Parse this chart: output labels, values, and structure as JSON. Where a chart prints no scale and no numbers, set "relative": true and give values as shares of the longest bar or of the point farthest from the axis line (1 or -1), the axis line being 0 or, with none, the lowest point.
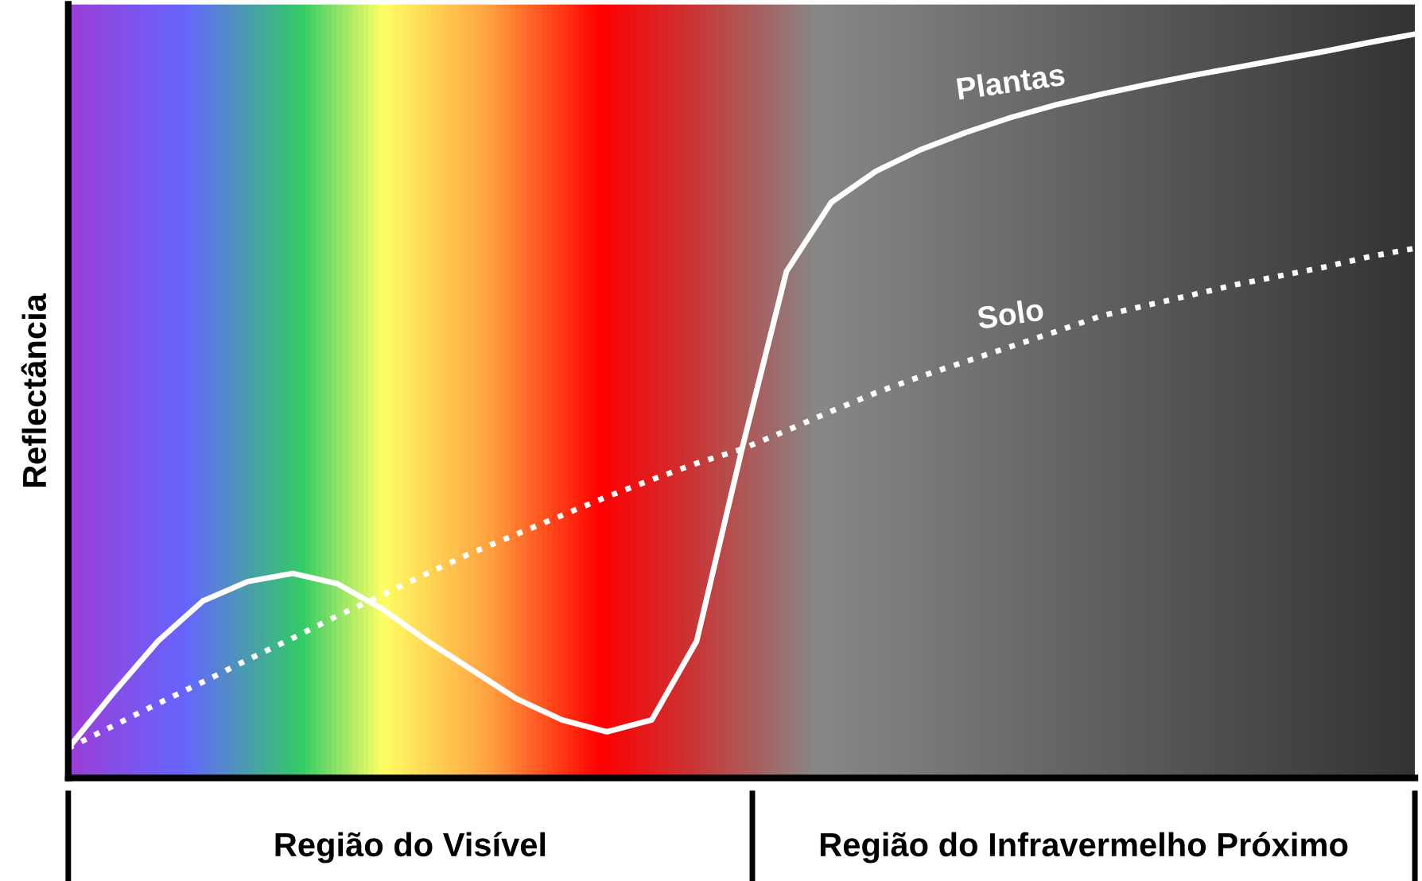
{
  "chart_data": {
    "type": "line",
    "relative": true,
    "ylabel": "Reflectância",
    "tick_labels": false,
    "categories": [
      null,
      null,
      null,
      null,
      null,
      null,
      null,
      null,
      null,
      null,
      null,
      null,
      null,
      null,
      null,
      null,
      null,
      null,
      null,
      null,
      null,
      null,
      null,
      null,
      null,
      null,
      null,
      null,
      null,
      null,
      null
    ],
    "series": [
      {
        "name": "Plantas",
        "color": "#ffffff",
        "line_style": "solid",
        "values": [
          0.04,
          0.114,
          0.184,
          0.238,
          0.264,
          0.275,
          0.261,
          0.227,
          0.184,
          0.145,
          0.106,
          0.078,
          0.062,
          0.078,
          0.184,
          0.44,
          0.681,
          0.774,
          0.816,
          0.845,
          0.868,
          0.888,
          0.905,
          0.919,
          0.932,
          0.944,
          0.955,
          0.966,
          0.977,
          0.989,
          1
        ]
      },
      {
        "name": "Solo",
        "color": "#ffffff",
        "line_style": "dotted",
        "values": [
          0.04,
          0.07,
          0.1,
          0.129,
          0.159,
          0.188,
          0.218,
          0.246,
          0.275,
          0.303,
          0.328,
          0.353,
          0.378,
          0.401,
          0.423,
          0.442,
          0.467,
          0.493,
          0.518,
          0.54,
          0.56,
          0.58,
          0.6,
          0.621,
          0.635,
          0.649,
          0.663,
          0.675,
          0.687,
          0.701,
          0.712
        ]
      }
    ],
    "annotations": [
      "Região do Visível",
      "Região do Infravermelho Próximo"
    ]
  }
}
